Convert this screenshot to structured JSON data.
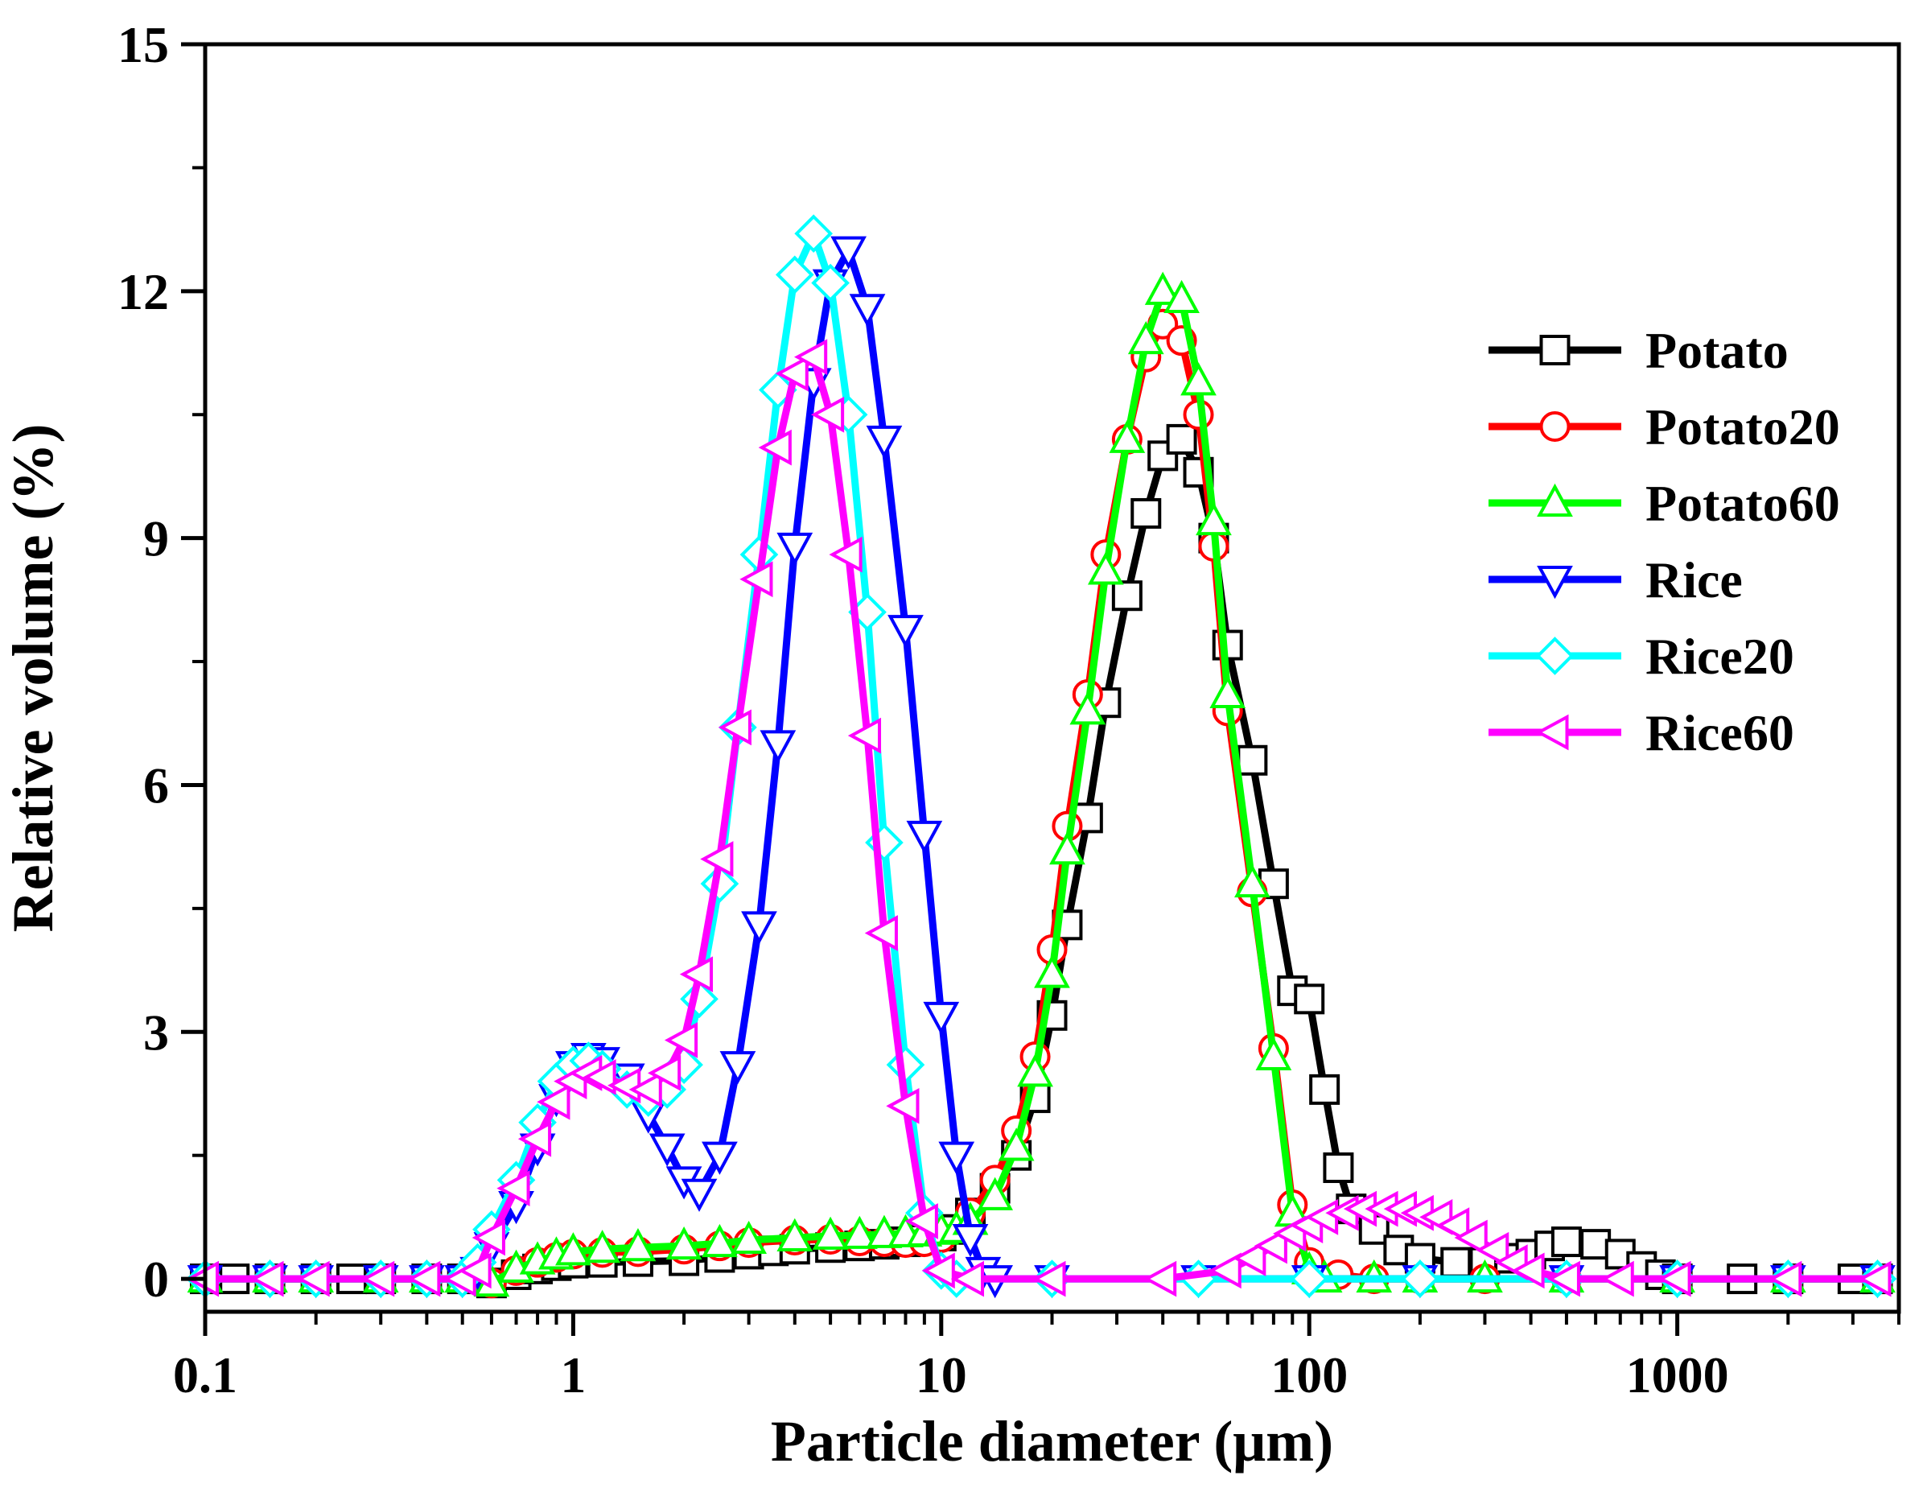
{
  "chart_data": {
    "type": "line",
    "xlabel": "Particle diameter (μm)",
    "ylabel": "Relative volume (%)",
    "xscale": "log",
    "xlim": [
      0.1,
      4000
    ],
    "ylim": [
      -0.4,
      15
    ],
    "x_ticks": [
      "0.1",
      "1",
      "10",
      "100",
      "1000"
    ],
    "y_ticks": [
      "0",
      "3",
      "6",
      "9",
      "12",
      "15"
    ],
    "legend_position": "right",
    "grid": false,
    "series": [
      {
        "name": "Potato",
        "color": "#000000",
        "marker": "square",
        "points": [
          [
            0.1,
            0
          ],
          [
            0.12,
            0
          ],
          [
            0.15,
            0
          ],
          [
            0.2,
            0
          ],
          [
            0.25,
            0
          ],
          [
            0.3,
            0
          ],
          [
            0.4,
            0
          ],
          [
            0.5,
            0
          ],
          [
            0.6,
            -0.05
          ],
          [
            0.7,
            0.05
          ],
          [
            0.8,
            0.12
          ],
          [
            0.9,
            0.16
          ],
          [
            1.0,
            0.19
          ],
          [
            1.2,
            0.2
          ],
          [
            1.5,
            0.21
          ],
          [
            2.0,
            0.22
          ],
          [
            2.5,
            0.26
          ],
          [
            3.0,
            0.3
          ],
          [
            3.5,
            0.34
          ],
          [
            4.0,
            0.36
          ],
          [
            5.0,
            0.38
          ],
          [
            6.0,
            0.4
          ],
          [
            7.0,
            0.42
          ],
          [
            8.0,
            0.45
          ],
          [
            9.0,
            0.48
          ],
          [
            10,
            0.52
          ],
          [
            11,
            0.6
          ],
          [
            12,
            0.8
          ],
          [
            14,
            1.1
          ],
          [
            16,
            1.5
          ],
          [
            18,
            2.2
          ],
          [
            20,
            3.2
          ],
          [
            22,
            4.3
          ],
          [
            25,
            5.6
          ],
          [
            28,
            7.0
          ],
          [
            32,
            8.3
          ],
          [
            36,
            9.3
          ],
          [
            40,
            10.0
          ],
          [
            45,
            10.2
          ],
          [
            50,
            9.8
          ],
          [
            55,
            9.0
          ],
          [
            60,
            7.7
          ],
          [
            70,
            6.3
          ],
          [
            80,
            4.8
          ],
          [
            90,
            3.5
          ],
          [
            100,
            3.4
          ],
          [
            110,
            2.3
          ],
          [
            120,
            1.35
          ],
          [
            130,
            0.85
          ],
          [
            150,
            0.6
          ],
          [
            175,
            0.35
          ],
          [
            200,
            0.25
          ],
          [
            250,
            0.2
          ],
          [
            300,
            0.2
          ],
          [
            350,
            0.25
          ],
          [
            400,
            0.3
          ],
          [
            450,
            0.4
          ],
          [
            500,
            0.45
          ],
          [
            600,
            0.42
          ],
          [
            700,
            0.3
          ],
          [
            800,
            0.15
          ],
          [
            900,
            0.05
          ],
          [
            1000,
            0
          ],
          [
            1500,
            0
          ],
          [
            2000,
            0
          ],
          [
            3000,
            0
          ],
          [
            3500,
            0
          ]
        ]
      },
      {
        "name": "Potato20",
        "color": "#ff0000",
        "marker": "circle",
        "points": [
          [
            0.1,
            0
          ],
          [
            0.15,
            0
          ],
          [
            0.2,
            0
          ],
          [
            0.3,
            0
          ],
          [
            0.4,
            0
          ],
          [
            0.5,
            0
          ],
          [
            0.6,
            -0.05
          ],
          [
            0.7,
            0.1
          ],
          [
            0.8,
            0.2
          ],
          [
            0.9,
            0.26
          ],
          [
            1.0,
            0.3
          ],
          [
            1.2,
            0.32
          ],
          [
            1.5,
            0.33
          ],
          [
            2.0,
            0.36
          ],
          [
            2.5,
            0.4
          ],
          [
            3.0,
            0.44
          ],
          [
            4.0,
            0.47
          ],
          [
            5.0,
            0.48
          ],
          [
            6.0,
            0.46
          ],
          [
            7.0,
            0.45
          ],
          [
            8.0,
            0.44
          ],
          [
            9.0,
            0.45
          ],
          [
            10,
            0.5
          ],
          [
            12,
            0.8
          ],
          [
            14,
            1.2
          ],
          [
            16,
            1.8
          ],
          [
            18,
            2.7
          ],
          [
            20,
            4.0
          ],
          [
            22,
            5.5
          ],
          [
            25,
            7.1
          ],
          [
            28,
            8.8
          ],
          [
            32,
            10.2
          ],
          [
            36,
            11.2
          ],
          [
            40,
            11.6
          ],
          [
            45,
            11.4
          ],
          [
            50,
            10.5
          ],
          [
            55,
            8.9
          ],
          [
            60,
            6.9
          ],
          [
            70,
            4.7
          ],
          [
            80,
            2.8
          ],
          [
            90,
            0.9
          ],
          [
            100,
            0.2
          ],
          [
            120,
            0.05
          ],
          [
            150,
            0
          ],
          [
            200,
            0
          ],
          [
            300,
            0
          ],
          [
            500,
            0
          ],
          [
            1000,
            0
          ],
          [
            2000,
            0
          ],
          [
            3500,
            0
          ]
        ]
      },
      {
        "name": "Potato60",
        "color": "#00ff00",
        "marker": "triangle-up",
        "points": [
          [
            0.1,
            0
          ],
          [
            0.15,
            0
          ],
          [
            0.2,
            0
          ],
          [
            0.3,
            0
          ],
          [
            0.4,
            0
          ],
          [
            0.5,
            0
          ],
          [
            0.6,
            -0.05
          ],
          [
            0.7,
            0.12
          ],
          [
            0.8,
            0.22
          ],
          [
            0.9,
            0.28
          ],
          [
            1.0,
            0.33
          ],
          [
            1.2,
            0.36
          ],
          [
            1.5,
            0.38
          ],
          [
            2.0,
            0.4
          ],
          [
            2.5,
            0.43
          ],
          [
            3.0,
            0.47
          ],
          [
            4.0,
            0.5
          ],
          [
            5.0,
            0.52
          ],
          [
            6.0,
            0.53
          ],
          [
            7.0,
            0.54
          ],
          [
            8.0,
            0.55
          ],
          [
            9.0,
            0.56
          ],
          [
            10,
            0.58
          ],
          [
            11,
            0.6
          ],
          [
            12,
            0.7
          ],
          [
            14,
            1.0
          ],
          [
            16,
            1.6
          ],
          [
            18,
            2.5
          ],
          [
            20,
            3.7
          ],
          [
            22,
            5.2
          ],
          [
            25,
            6.9
          ],
          [
            28,
            8.6
          ],
          [
            32,
            10.2
          ],
          [
            36,
            11.4
          ],
          [
            40,
            12.0
          ],
          [
            45,
            11.9
          ],
          [
            50,
            10.9
          ],
          [
            55,
            9.2
          ],
          [
            60,
            7.1
          ],
          [
            70,
            4.8
          ],
          [
            80,
            2.7
          ],
          [
            90,
            0.8
          ],
          [
            100,
            0.1
          ],
          [
            110,
            0
          ],
          [
            150,
            0
          ],
          [
            200,
            0
          ],
          [
            300,
            0
          ],
          [
            500,
            0
          ],
          [
            1000,
            0
          ],
          [
            2000,
            0
          ],
          [
            3500,
            0
          ]
        ]
      },
      {
        "name": "Rice",
        "color": "#0000ff",
        "marker": "triangle-down",
        "points": [
          [
            0.1,
            0
          ],
          [
            0.15,
            0
          ],
          [
            0.2,
            0
          ],
          [
            0.3,
            0
          ],
          [
            0.4,
            0
          ],
          [
            0.5,
            0
          ],
          [
            0.55,
            0.1
          ],
          [
            0.6,
            0.4
          ],
          [
            0.7,
            0.9
          ],
          [
            0.8,
            1.6
          ],
          [
            0.9,
            2.2
          ],
          [
            1.0,
            2.6
          ],
          [
            1.1,
            2.7
          ],
          [
            1.2,
            2.65
          ],
          [
            1.4,
            2.45
          ],
          [
            1.6,
            2.0
          ],
          [
            1.8,
            1.6
          ],
          [
            2.0,
            1.2
          ],
          [
            2.2,
            1.05
          ],
          [
            2.5,
            1.5
          ],
          [
            2.8,
            2.6
          ],
          [
            3.2,
            4.3
          ],
          [
            3.6,
            6.5
          ],
          [
            4.0,
            8.9
          ],
          [
            4.5,
            10.9
          ],
          [
            5.0,
            12.1
          ],
          [
            5.6,
            12.5
          ],
          [
            6.3,
            11.8
          ],
          [
            7.0,
            10.2
          ],
          [
            8.0,
            7.9
          ],
          [
            9.0,
            5.4
          ],
          [
            10,
            3.2
          ],
          [
            11,
            1.5
          ],
          [
            12,
            0.5
          ],
          [
            13,
            0.1
          ],
          [
            14,
            0
          ],
          [
            20,
            0
          ],
          [
            50,
            0
          ],
          [
            100,
            0
          ],
          [
            200,
            0
          ],
          [
            500,
            0
          ],
          [
            1000,
            0
          ],
          [
            2000,
            0
          ],
          [
            3500,
            0
          ]
        ]
      },
      {
        "name": "Rice20",
        "color": "#00ffff",
        "marker": "diamond",
        "points": [
          [
            0.1,
            0
          ],
          [
            0.15,
            0
          ],
          [
            0.2,
            0
          ],
          [
            0.3,
            0
          ],
          [
            0.4,
            0
          ],
          [
            0.5,
            0
          ],
          [
            0.55,
            0.2
          ],
          [
            0.6,
            0.6
          ],
          [
            0.7,
            1.2
          ],
          [
            0.8,
            1.9
          ],
          [
            0.9,
            2.4
          ],
          [
            1.0,
            2.6
          ],
          [
            1.1,
            2.65
          ],
          [
            1.2,
            2.55
          ],
          [
            1.4,
            2.3
          ],
          [
            1.6,
            2.2
          ],
          [
            1.8,
            2.3
          ],
          [
            2.0,
            2.6
          ],
          [
            2.2,
            3.4
          ],
          [
            2.5,
            4.8
          ],
          [
            2.8,
            6.7
          ],
          [
            3.2,
            8.8
          ],
          [
            3.6,
            10.8
          ],
          [
            4.0,
            12.2
          ],
          [
            4.5,
            12.7
          ],
          [
            5.0,
            12.1
          ],
          [
            5.6,
            10.5
          ],
          [
            6.3,
            8.1
          ],
          [
            7.0,
            5.3
          ],
          [
            8.0,
            2.6
          ],
          [
            9.0,
            0.8
          ],
          [
            10,
            0.1
          ],
          [
            11,
            0
          ],
          [
            20,
            0
          ],
          [
            50,
            0
          ],
          [
            100,
            0
          ],
          [
            200,
            0
          ],
          [
            500,
            0
          ],
          [
            1000,
            0
          ],
          [
            2000,
            0
          ],
          [
            3500,
            0
          ]
        ]
      },
      {
        "name": "Rice60",
        "color": "#ff00ff",
        "marker": "triangle-left",
        "points": [
          [
            0.1,
            0
          ],
          [
            0.15,
            0
          ],
          [
            0.2,
            0
          ],
          [
            0.3,
            0
          ],
          [
            0.4,
            0
          ],
          [
            0.5,
            0
          ],
          [
            0.55,
            0.1
          ],
          [
            0.6,
            0.5
          ],
          [
            0.7,
            1.1
          ],
          [
            0.8,
            1.7
          ],
          [
            0.9,
            2.15
          ],
          [
            1.0,
            2.4
          ],
          [
            1.1,
            2.5
          ],
          [
            1.2,
            2.45
          ],
          [
            1.4,
            2.35
          ],
          [
            1.6,
            2.3
          ],
          [
            1.8,
            2.5
          ],
          [
            2.0,
            2.9
          ],
          [
            2.2,
            3.7
          ],
          [
            2.5,
            5.1
          ],
          [
            2.8,
            6.7
          ],
          [
            3.2,
            8.5
          ],
          [
            3.6,
            10.1
          ],
          [
            4.0,
            11.0
          ],
          [
            4.5,
            11.2
          ],
          [
            5.0,
            10.5
          ],
          [
            5.6,
            8.8
          ],
          [
            6.3,
            6.6
          ],
          [
            7.0,
            4.2
          ],
          [
            8.0,
            2.1
          ],
          [
            9.0,
            0.7
          ],
          [
            10,
            0.1
          ],
          [
            12,
            0
          ],
          [
            20,
            0
          ],
          [
            40,
            0
          ],
          [
            60,
            0.1
          ],
          [
            70,
            0.25
          ],
          [
            80,
            0.4
          ],
          [
            90,
            0.55
          ],
          [
            100,
            0.65
          ],
          [
            110,
            0.75
          ],
          [
            125,
            0.8
          ],
          [
            140,
            0.85
          ],
          [
            160,
            0.85
          ],
          [
            180,
            0.85
          ],
          [
            200,
            0.8
          ],
          [
            225,
            0.75
          ],
          [
            250,
            0.65
          ],
          [
            280,
            0.5
          ],
          [
            320,
            0.35
          ],
          [
            360,
            0.2
          ],
          [
            400,
            0.1
          ],
          [
            500,
            0
          ],
          [
            700,
            0
          ],
          [
            1000,
            0
          ],
          [
            2000,
            0
          ],
          [
            3500,
            0
          ]
        ]
      }
    ]
  }
}
